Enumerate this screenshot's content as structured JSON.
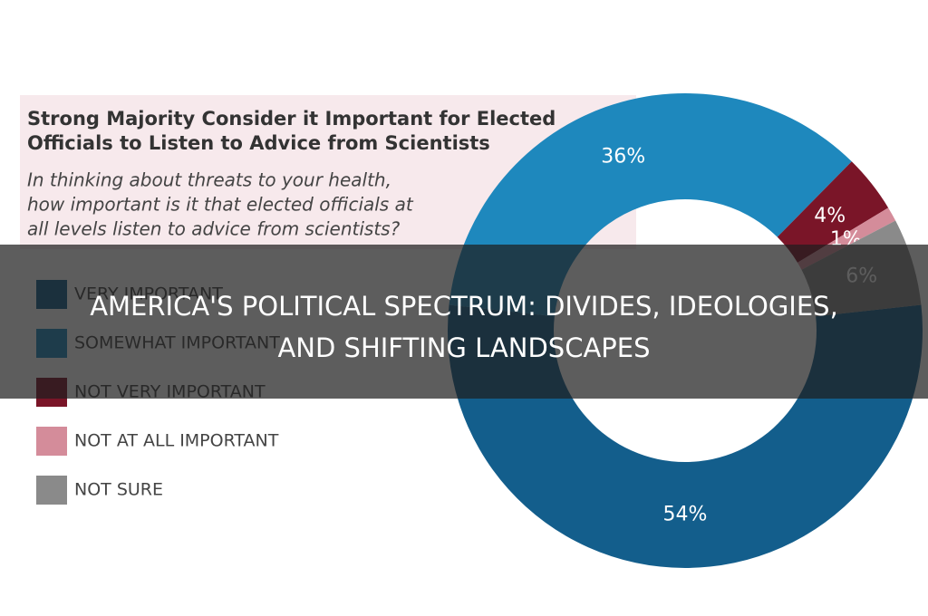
{
  "chart_data": {
    "type": "pie",
    "title": [
      "Strong Majority Consider it Important for Elected",
      "Officials to Listen to Advice from Scientists"
    ],
    "subtitle": [
      "In thinking about threats to your health,",
      "how important is it that elected officials at",
      "all levels listen to advice from scientists?"
    ],
    "categories": [
      "VERY IMPORTANT",
      "SOMEWHAT IMPORTANT",
      "NOT VERY IMPORTANT",
      "NOT AT ALL IMPORTANT",
      "NOT SURE"
    ],
    "values": [
      54,
      36,
      4,
      1,
      6
    ],
    "value_labels": [
      "54%",
      "36%",
      "4%",
      "1%",
      "6%"
    ],
    "colors": [
      "#135e8c",
      "#1e88bd",
      "#7a1528",
      "#d48c9a",
      "#8a8a8a"
    ],
    "hole": true
  },
  "banner": {
    "title": [
      "AMERICA'S POLITICAL SPECTRUM: DIVIDES, IDEOLOGIES,",
      "AND SHIFTING LANDSCAPES"
    ]
  }
}
